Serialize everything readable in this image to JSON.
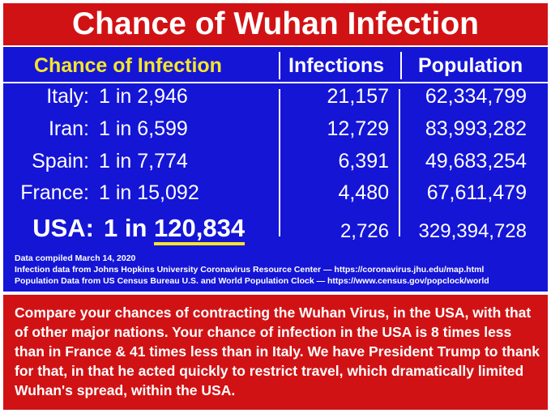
{
  "title": "Chance of Wuhan Infection",
  "table": {
    "headers": {
      "chance": "Chance of Infection",
      "infections": "Infections",
      "population": "Population"
    },
    "rows": [
      {
        "country": "Italy:",
        "chance": "1 in 2,946",
        "infections": "21,157",
        "population": "62,334,799"
      },
      {
        "country": "Iran:",
        "chance": "1 in 6,599",
        "infections": "12,729",
        "population": "83,993,282"
      },
      {
        "country": "Spain:",
        "chance": "1 in 7,774",
        "infections": "6,391",
        "population": "49,683,254"
      },
      {
        "country": "France:",
        "chance": "1 in 15,092",
        "infections": "4,480",
        "population": "67,611,479"
      }
    ],
    "usa": {
      "country": "USA:",
      "chance_prefix": "1 in",
      "chance_number": "120,834",
      "infections": "2,726",
      "population": "329,394,728"
    }
  },
  "notes": [
    "Data compiled March 14, 2020",
    "Infection data from Johns Hopkins University Coronavirus Resource Center — https://coronavirus.jhu.edu/map.html",
    "Population Data from US Census Bureau U.S. and World Population Clock — https://www.census.gov/popclock/world"
  ],
  "bottom_text": "Compare your chances of contracting the Wuhan Virus, in the USA, with that of other major nations. Your chance of infection in the USA is 8 times less than in France & 41 times less than in Italy. We have President Trump to thank for that, in that he acted quickly to restrict travel, which dramatically limited Wuhan's spread, within the USA.",
  "colors": {
    "red": "#d11214",
    "blue": "#1515d6",
    "yellow": "#f5e62a",
    "white": "#ffffff"
  }
}
